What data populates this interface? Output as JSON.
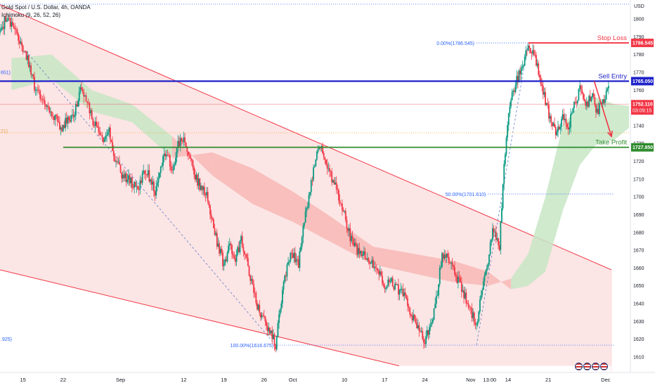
{
  "header": {
    "title": "Gold Spot / U.S. Dollar, 4h, OANDA",
    "indicator": "Ichimoku (9, 26, 52, 26)",
    "currency": "USD"
  },
  "chart_data": {
    "type": "candlestick",
    "symbol": "Gold Spot / U.S. Dollar",
    "timeframe": "4h",
    "ylim": [
      1605,
      1812
    ],
    "y_ticks": [
      1610,
      1620,
      1630,
      1640,
      1650,
      1660,
      1670,
      1680,
      1690,
      1700,
      1710,
      1720,
      1730,
      1740,
      1750,
      1760,
      1770,
      1780,
      1790,
      1800
    ],
    "x_ticks": [
      {
        "label": "15",
        "t": 15
      },
      {
        "label": "22",
        "t": 22
      },
      {
        "label": "Sep",
        "t": 32
      },
      {
        "label": "12",
        "t": 43
      },
      {
        "label": "19",
        "t": 50
      },
      {
        "label": "26",
        "t": 57
      },
      {
        "label": "Oct",
        "t": 62
      },
      {
        "label": "10",
        "t": 71
      },
      {
        "label": "17",
        "t": 78
      },
      {
        "label": "24",
        "t": 85
      },
      {
        "label": "Nov",
        "t": 93
      },
      {
        "label": "13:00",
        "t": 96.3
      },
      {
        "label": "14",
        "t": 99.5
      },
      {
        "label": "21",
        "t": 106.5
      },
      {
        "label": "Dec",
        "t": 116.5
      }
    ],
    "price_path": [
      [
        11,
        1792
      ],
      [
        12,
        1800
      ],
      [
        13,
        1796
      ],
      [
        14,
        1790
      ],
      [
        15,
        1784
      ],
      [
        16,
        1775
      ],
      [
        17,
        1762
      ],
      [
        19,
        1752
      ],
      [
        20,
        1748
      ],
      [
        21.5,
        1738
      ],
      [
        22.5,
        1742
      ],
      [
        24,
        1748
      ],
      [
        25,
        1762
      ],
      [
        26,
        1755
      ],
      [
        27,
        1744
      ],
      [
        28,
        1738
      ],
      [
        29,
        1730
      ],
      [
        30,
        1736
      ],
      [
        31,
        1722
      ],
      [
        32,
        1714
      ],
      [
        33,
        1710
      ],
      [
        34,
        1708
      ],
      [
        35,
        1703
      ],
      [
        36,
        1716
      ],
      [
        37,
        1711
      ],
      [
        38,
        1703
      ],
      [
        39,
        1719
      ],
      [
        40,
        1726
      ],
      [
        41,
        1713
      ],
      [
        42,
        1730
      ],
      [
        43,
        1733
      ],
      [
        44,
        1722
      ],
      [
        45,
        1712
      ],
      [
        46,
        1705
      ],
      [
        47,
        1700
      ],
      [
        48,
        1686
      ],
      [
        49,
        1672
      ],
      [
        50,
        1662
      ],
      [
        51,
        1672
      ],
      [
        52,
        1666
      ],
      [
        53,
        1675
      ],
      [
        54,
        1664
      ],
      [
        55,
        1649
      ],
      [
        56,
        1637
      ],
      [
        57,
        1630
      ],
      [
        58,
        1624
      ],
      [
        59,
        1617
      ],
      [
        60,
        1643
      ],
      [
        61,
        1662
      ],
      [
        62,
        1668
      ],
      [
        63,
        1663
      ],
      [
        64,
        1688
      ],
      [
        65,
        1703
      ],
      [
        66,
        1724
      ],
      [
        67,
        1727
      ],
      [
        68,
        1718
      ],
      [
        69,
        1709
      ],
      [
        70,
        1700
      ],
      [
        71,
        1690
      ],
      [
        72,
        1678
      ],
      [
        73,
        1670
      ],
      [
        74,
        1668
      ],
      [
        75,
        1664
      ],
      [
        76,
        1662
      ],
      [
        77,
        1657
      ],
      [
        78,
        1650
      ],
      [
        79,
        1655
      ],
      [
        80,
        1648
      ],
      [
        81,
        1648
      ],
      [
        82,
        1640
      ],
      [
        83,
        1631
      ],
      [
        84,
        1624
      ],
      [
        85,
        1619
      ],
      [
        86,
        1627
      ],
      [
        87,
        1642
      ],
      [
        88,
        1668
      ],
      [
        89,
        1665
      ],
      [
        90,
        1658
      ],
      [
        91,
        1652
      ],
      [
        92,
        1644
      ],
      [
        93,
        1636
      ],
      [
        94,
        1626
      ],
      [
        95,
        1649
      ],
      [
        96,
        1665
      ],
      [
        97,
        1683
      ],
      [
        98,
        1672
      ],
      [
        98.5,
        1700
      ],
      [
        99,
        1726
      ],
      [
        99.5,
        1745
      ],
      [
        100,
        1755
      ],
      [
        101,
        1766
      ],
      [
        102,
        1772
      ],
      [
        103,
        1786
      ],
      [
        104,
        1781
      ],
      [
        105,
        1767
      ],
      [
        106,
        1754
      ],
      [
        107,
        1742
      ],
      [
        108,
        1735
      ],
      [
        109,
        1744
      ],
      [
        110,
        1738
      ],
      [
        111,
        1752
      ],
      [
        112,
        1760
      ],
      [
        113,
        1750
      ],
      [
        114,
        1758
      ],
      [
        115,
        1748
      ],
      [
        116,
        1753
      ],
      [
        117,
        1762
      ]
    ],
    "channel": {
      "upper": [
        [
          11,
          1808
        ],
        [
          117.5,
          1659
        ]
      ],
      "lower": [
        [
          11,
          1659
        ],
        [
          80.5,
          1605
        ]
      ]
    },
    "ichimoku_cloud_samples": [
      {
        "t": 13,
        "a": 1778,
        "b": 1760
      },
      {
        "t": 20,
        "a": 1780,
        "b": 1766
      },
      {
        "t": 27,
        "a": 1760,
        "b": 1748
      },
      {
        "t": 34,
        "a": 1752,
        "b": 1742
      },
      {
        "t": 41,
        "a": 1734,
        "b": 1722
      },
      {
        "t": 48,
        "a": 1712,
        "b": 1725
      },
      {
        "t": 55,
        "a": 1696,
        "b": 1716
      },
      {
        "t": 62,
        "a": 1686,
        "b": 1703
      },
      {
        "t": 69,
        "a": 1674,
        "b": 1688
      },
      {
        "t": 76,
        "a": 1662,
        "b": 1672
      },
      {
        "t": 83,
        "a": 1657,
        "b": 1668
      },
      {
        "t": 90,
        "a": 1652,
        "b": 1664
      },
      {
        "t": 96,
        "a": 1650,
        "b": 1658
      },
      {
        "t": 100,
        "a": 1654,
        "b": 1648
      },
      {
        "t": 103,
        "a": 1668,
        "b": 1650
      },
      {
        "t": 106,
        "a": 1700,
        "b": 1658
      },
      {
        "t": 109,
        "a": 1740,
        "b": 1692
      },
      {
        "t": 112,
        "a": 1752,
        "b": 1718
      },
      {
        "t": 115,
        "a": 1756,
        "b": 1730
      },
      {
        "t": 118,
        "a": 1752,
        "b": 1732
      },
      {
        "t": 121,
        "a": 1751,
        "b": 1740
      }
    ],
    "fib_levels": [
      {
        "label": "0.00%(1786.545)",
        "value": 1786.545
      },
      {
        "label": "50.00%(1701.610)",
        "value": 1701.61
      },
      {
        "label": "100.00%(1616.675)",
        "value": 1616.675
      }
    ],
    "left_cut_labels": [
      "651)",
      "21)",
      ".925)"
    ],
    "levels": [
      {
        "name": "Stop Loss",
        "value": 1786.545,
        "price_label": "1786.545",
        "color": "#f23645"
      },
      {
        "name": "Sell Entry",
        "value": 1765.05,
        "price_label": "1765.050",
        "color": "#1e22c9"
      },
      {
        "name": "Take Profit",
        "value": 1727.85,
        "price_label": "1727.850",
        "color": "#2e8b2e"
      }
    ],
    "current_price": {
      "value": 1752.11,
      "label": "1752.110",
      "timer": "03:09:15",
      "color": "#f23645"
    },
    "forecast_arrow": {
      "from": [
        114.5,
        1765
      ],
      "to": [
        117.5,
        1734
      ]
    },
    "colors": {
      "up_candle": "#089981",
      "down_candle": "#f23645",
      "channel_fill": "#fbdcdc",
      "channel_line": "#f23645",
      "cloud_bull": "#c7e6c4",
      "cloud_bear": "#f7b8b6"
    },
    "grid": false
  }
}
